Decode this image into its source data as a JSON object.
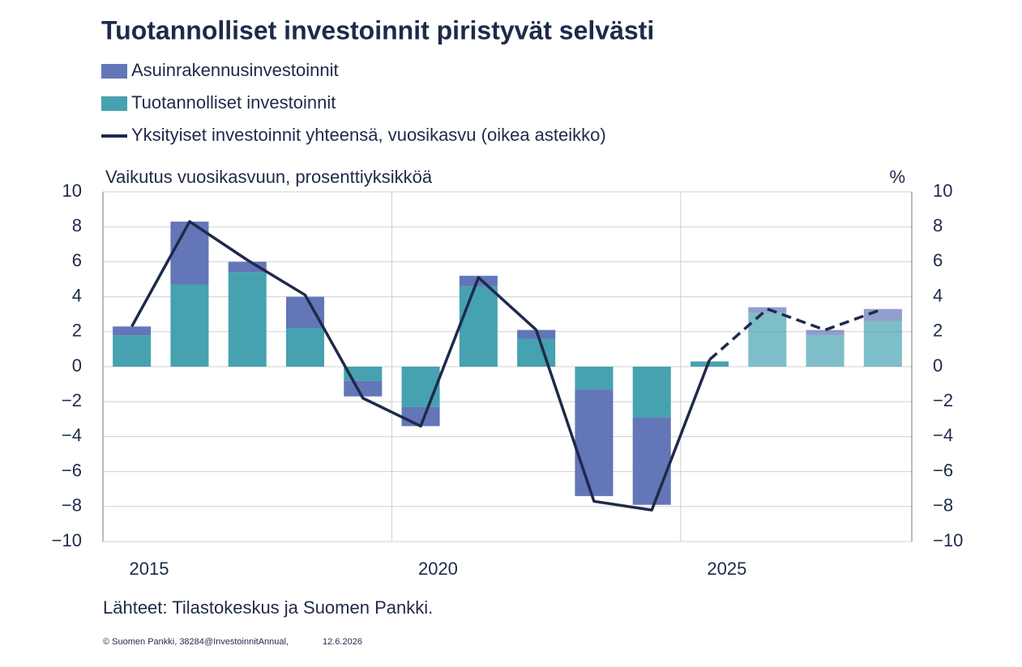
{
  "chart_data": {
    "type": "bar",
    "title": "Tuotannolliset investoinnit piristyvät selvästi",
    "ylabel": "Vaikutus vuosikasvuun, prosenttiyksikköä",
    "y2label": "%",
    "source": "Lähteet: Tilastokeskus ja Suomen Pankki.",
    "footer": "© Suomen Pankki, 38284@InvestoinnitAnnual,",
    "date": "12.6.2026",
    "categories": [
      "2015",
      null,
      null,
      null,
      null,
      "2020",
      null,
      null,
      null,
      null,
      "2025",
      null,
      null,
      null
    ],
    "forecast_start": 10,
    "series": [
      {
        "name": "Asuinrakennusinvestoinnit",
        "color": "#6276b8",
        "values": [
          0.5,
          3.6,
          0.6,
          1.8,
          -0.9,
          -1.1,
          0.6,
          0.5,
          -6.1,
          -5.0,
          0.0,
          0.3,
          0.3,
          0.7
        ]
      },
      {
        "name": "Tuotannolliset investoinnit",
        "color": "#46a2b0",
        "values": [
          1.8,
          4.7,
          5.4,
          2.2,
          -0.8,
          -2.3,
          4.6,
          1.6,
          -1.3,
          -2.9,
          0.3,
          3.1,
          1.8,
          2.6
        ]
      },
      {
        "name": "Yksityiset investoinnit yhteensä, vuosikasvu (oikea asteikko)",
        "color": "#1f2a4a",
        "type": "line",
        "axis": "y2",
        "values": [
          2.3,
          8.3,
          6.1,
          4.1,
          -1.8,
          -3.4,
          5.1,
          2.1,
          -7.7,
          -8.2,
          0.4,
          3.3,
          2.1,
          3.3
        ]
      }
    ],
    "ylim": [
      -10,
      10
    ],
    "yticks": [
      {
        "value": -10,
        "label": "−10"
      },
      {
        "value": -8,
        "label": "−8"
      },
      {
        "value": -6,
        "label": "−6"
      },
      {
        "value": -4,
        "label": "−4"
      },
      {
        "value": -2,
        "label": "−2"
      },
      0,
      2,
      4,
      6,
      8,
      10
    ],
    "y2lim": [
      -10,
      10
    ],
    "y2ticks": [
      {
        "value": -10,
        "label": "−10"
      },
      {
        "value": -8,
        "label": "−8"
      },
      {
        "value": -6,
        "label": "−6"
      },
      {
        "value": -4,
        "label": "−4"
      },
      {
        "value": -2,
        "label": "−2"
      },
      0,
      2,
      4,
      6,
      8,
      10
    ],
    "grid": true
  }
}
